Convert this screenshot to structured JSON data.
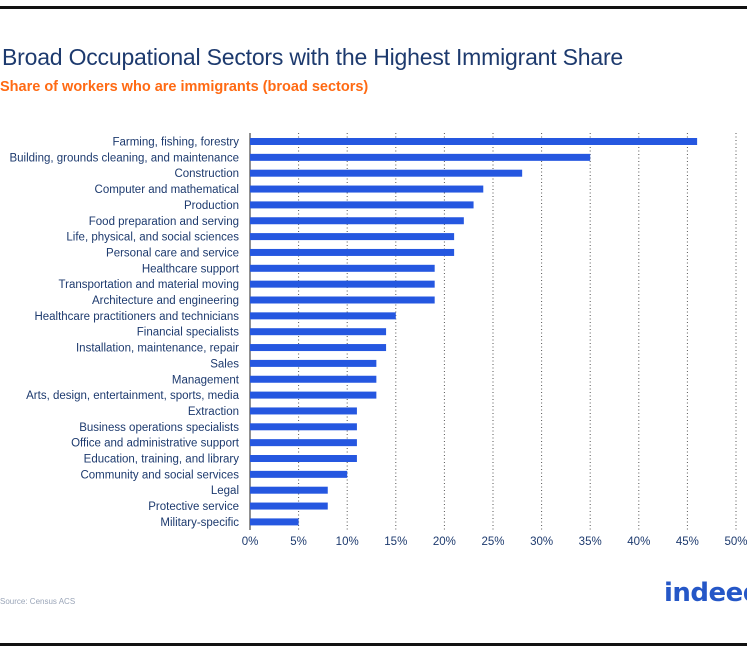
{
  "header": {
    "title": "Broad Occupational Sectors with the Highest Immigrant Share",
    "subtitle": "Share of workers who are immigrants (broad sectors)"
  },
  "footer": {
    "source": "Source: Census ACS",
    "logo": "indeed"
  },
  "colors": {
    "bar": "#2557e0",
    "title": "#1d3a6e",
    "subtitle": "#ff6a13",
    "grid": "#555555"
  },
  "chart_data": {
    "type": "bar",
    "orientation": "horizontal",
    "title": "Broad Occupational Sectors with the Highest Immigrant Share",
    "subtitle": "Share of workers who are immigrants (broad sectors)",
    "xlabel": "",
    "ylabel": "",
    "xlim": [
      0,
      50
    ],
    "grid": "vertical dotted",
    "ticks": [
      "0%",
      "5%",
      "10%",
      "15%",
      "20%",
      "25%",
      "30%",
      "35%",
      "40%",
      "45%",
      "50%"
    ],
    "categories": [
      "Farming, fishing, forestry",
      "Building, grounds cleaning, and maintenance",
      "Construction",
      "Computer and mathematical",
      "Production",
      "Food preparation and serving",
      "Life, physical, and social sciences",
      "Personal care and service",
      "Healthcare support",
      "Transportation and material moving",
      "Architecture and engineering",
      "Healthcare practitioners and technicians",
      "Financial specialists",
      "Installation, maintenance, repair",
      "Sales",
      "Management",
      "Arts, design, entertainment, sports, media",
      "Extraction",
      "Business operations specialists",
      "Office and administrative support",
      "Education, training, and library",
      "Community and social services",
      "Legal",
      "Protective service",
      "Military-specific"
    ],
    "values": [
      46,
      35,
      28,
      24,
      23,
      22,
      21,
      21,
      19,
      19,
      19,
      15,
      14,
      14,
      13,
      13,
      13,
      11,
      11,
      11,
      11,
      10,
      8,
      8,
      5
    ]
  }
}
